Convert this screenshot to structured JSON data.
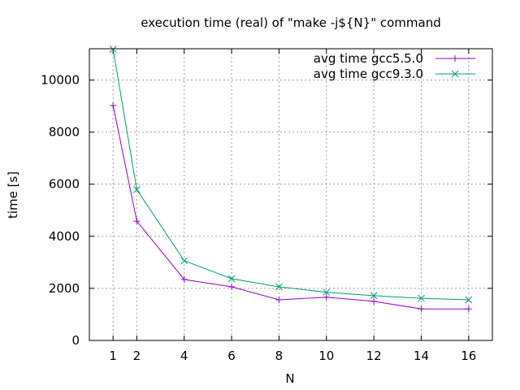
{
  "chart_data": {
    "type": "line",
    "title": "execution time (real) of \"make -j${N}\" command",
    "xlabel": "N",
    "ylabel": "time [s]",
    "xlim": [
      0,
      17
    ],
    "ylim": [
      0,
      11200
    ],
    "x_ticks": [
      1,
      2,
      4,
      6,
      8,
      10,
      12,
      14,
      16
    ],
    "y_ticks": [
      0,
      2000,
      4000,
      6000,
      8000,
      10000
    ],
    "grid": true,
    "legend_position": "top-right",
    "x": [
      1,
      2,
      4,
      6,
      8,
      10,
      12,
      14,
      16
    ],
    "series": [
      {
        "name": "avg time gcc5.5.0",
        "color": "#9400d3",
        "marker": "plus",
        "values": [
          9020,
          4580,
          2340,
          2060,
          1560,
          1660,
          1500,
          1210,
          1210
        ]
      },
      {
        "name": "avg time gcc9.3.0",
        "color": "#009e73",
        "marker": "cross",
        "values": [
          11180,
          5790,
          3060,
          2370,
          2060,
          1850,
          1720,
          1620,
          1560
        ]
      }
    ]
  }
}
